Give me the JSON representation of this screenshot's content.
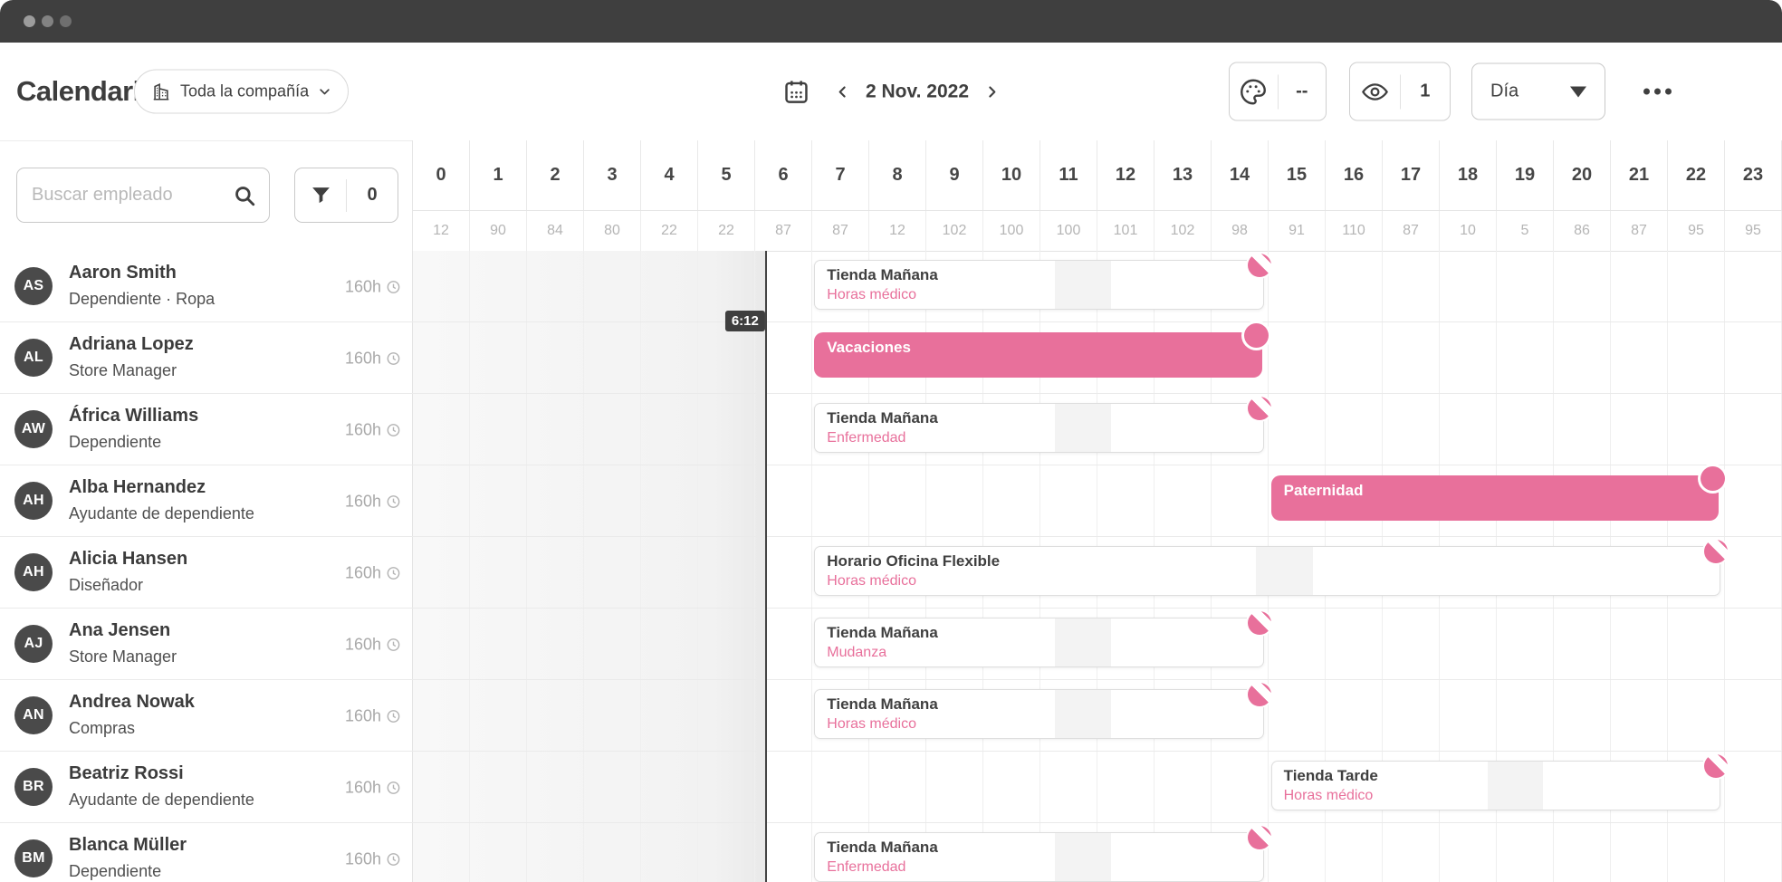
{
  "accent": {
    "pink": "#e8709b",
    "dark": "#3f3f3f"
  },
  "header": {
    "title": "Calendario",
    "company_selector": {
      "label": "Toda la compañía",
      "icon": "building-icon"
    },
    "date_nav": {
      "date": "2 Nov. 2022",
      "icons": [
        "calendar-icon",
        "chevron-left-icon",
        "chevron-right-icon"
      ]
    },
    "toolbar": {
      "palette_value": "--",
      "eye_value": "1",
      "view_selector": "Día",
      "icons": [
        "palette-icon",
        "eye-icon",
        "ellipsis-icon"
      ]
    }
  },
  "sidebar": {
    "search_placeholder": "Buscar empleado",
    "filter_count": "0",
    "icons": [
      "search-icon",
      "filter-icon"
    ]
  },
  "timeline": {
    "hours": [
      "0",
      "1",
      "2",
      "3",
      "4",
      "5",
      "6",
      "7",
      "8",
      "9",
      "10",
      "11",
      "12",
      "13",
      "14",
      "15",
      "16",
      "17",
      "18",
      "19",
      "20",
      "21",
      "22",
      "23"
    ],
    "counts": [
      "12",
      "90",
      "84",
      "80",
      "22",
      "22",
      "87",
      "87",
      "12",
      "102",
      "100",
      "100",
      "101",
      "102",
      "98",
      "91",
      "110",
      "87",
      "10",
      "5",
      "86",
      "87",
      "95",
      "95"
    ],
    "current_time": {
      "label": "6:12",
      "hour": 6.2
    }
  },
  "employees": [
    {
      "initials": "AS",
      "name": "Aaron Smith",
      "role": "Dependiente · Ropa",
      "hours_label": "160h",
      "event": {
        "type": "shift",
        "title": "Tienda Mañana",
        "subtitle": "Horas médico",
        "start": 7,
        "end": 15,
        "break_start": 11.28,
        "break_end": 12.28
      }
    },
    {
      "initials": "AL",
      "name": "Adriana Lopez",
      "role": "Store Manager",
      "hours_label": "160h",
      "event": {
        "type": "absence",
        "title": "Vacaciones",
        "start": 7,
        "end": 15
      }
    },
    {
      "initials": "AW",
      "name": "África Williams",
      "role": "Dependiente",
      "hours_label": "160h",
      "event": {
        "type": "shift",
        "title": "Tienda Mañana",
        "subtitle": "Enfermedad",
        "start": 7,
        "end": 15,
        "break_start": 11.28,
        "break_end": 12.28
      }
    },
    {
      "initials": "AH",
      "name": "Alba Hernandez",
      "role": "Ayudante de dependiente",
      "hours_label": "160h",
      "event": {
        "type": "absence",
        "title": "Paternidad",
        "start": 15,
        "end": 23
      }
    },
    {
      "initials": "AH",
      "name": "Alicia Hansen",
      "role": "Diseñador",
      "hours_label": "160h",
      "event": {
        "type": "shift",
        "title": "Horario Oficina Flexible",
        "subtitle": "Horas médico",
        "start": 7,
        "end": 23,
        "break_start": 14.8,
        "break_end": 15.8
      }
    },
    {
      "initials": "AJ",
      "name": "Ana Jensen",
      "role": "Store Manager",
      "hours_label": "160h",
      "event": {
        "type": "shift",
        "title": "Tienda Mañana",
        "subtitle": "Mudanza",
        "start": 7,
        "end": 15,
        "break_start": 11.28,
        "break_end": 12.28
      }
    },
    {
      "initials": "AN",
      "name": "Andrea Nowak",
      "role": "Compras",
      "hours_label": "160h",
      "event": {
        "type": "shift",
        "title": "Tienda Mañana",
        "subtitle": "Horas médico",
        "start": 7,
        "end": 15,
        "break_start": 11.28,
        "break_end": 12.28
      }
    },
    {
      "initials": "BR",
      "name": "Beatriz Rossi",
      "role": "Ayudante de dependiente",
      "hours_label": "160h",
      "event": {
        "type": "shift",
        "title": "Tienda Tarde",
        "subtitle": "Horas médico",
        "start": 15,
        "end": 23,
        "break_start": 18.85,
        "break_end": 19.85
      }
    },
    {
      "initials": "BM",
      "name": "Blanca Müller",
      "role": "Dependiente",
      "hours_label": "160h",
      "event": {
        "type": "shift",
        "title": "Tienda Mañana",
        "subtitle": "Enfermedad",
        "start": 7,
        "end": 15,
        "break_start": 11.28,
        "break_end": 12.28
      }
    }
  ]
}
